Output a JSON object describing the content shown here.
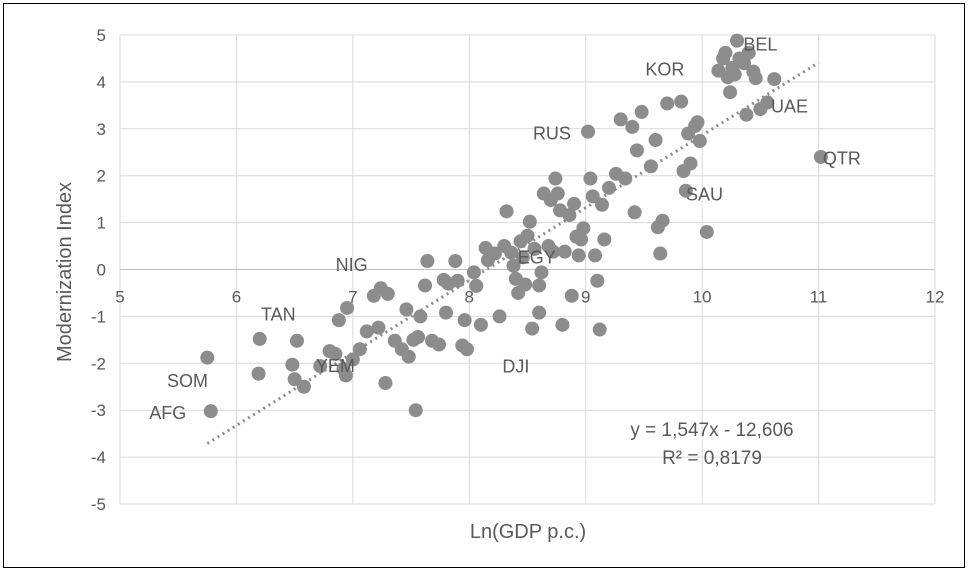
{
  "chart_data": {
    "type": "scatter",
    "xlabel": "Ln(GDP p.c.)",
    "ylabel": "Modernization Index",
    "xlim": [
      5,
      12
    ],
    "ylim": [
      -5,
      5
    ],
    "x_ticks": [
      "5",
      "6",
      "7",
      "8",
      "9",
      "10",
      "11",
      "12"
    ],
    "y_ticks": [
      "5",
      "4",
      "3",
      "2",
      "1",
      "0",
      "-1",
      "-2",
      "-3",
      "-4",
      "-5"
    ],
    "grid": "vertical and horizontal major gridlines",
    "marker_color": "#8c8c8c",
    "trendline_color": "#8c8c8c",
    "trendline": {
      "type": "linear",
      "slope": 1.547,
      "intercept": -12.606,
      "x_range": [
        5.75,
        11.0
      ]
    },
    "equation_text": "y = 1,547x - 12,606",
    "r2_text": "R² = 0,8179",
    "points": [
      [
        5.75,
        -1.88
      ],
      [
        5.78,
        -3.02
      ],
      [
        6.19,
        -2.22
      ],
      [
        6.2,
        -1.48
      ],
      [
        6.48,
        -2.03
      ],
      [
        6.5,
        -2.34
      ],
      [
        6.52,
        -1.52
      ],
      [
        6.58,
        -2.5
      ],
      [
        6.72,
        -2.06
      ],
      [
        6.8,
        -1.74
      ],
      [
        6.85,
        -1.8
      ],
      [
        6.88,
        -1.08
      ],
      [
        6.92,
        -2.12
      ],
      [
        6.94,
        -2.26
      ],
      [
        6.95,
        -0.82
      ],
      [
        7.0,
        -1.92
      ],
      [
        7.06,
        -1.7
      ],
      [
        7.12,
        -1.32
      ],
      [
        7.18,
        -0.56
      ],
      [
        7.22,
        -1.24
      ],
      [
        7.24,
        -0.4
      ],
      [
        7.28,
        -2.42
      ],
      [
        7.3,
        -0.52
      ],
      [
        7.36,
        -1.52
      ],
      [
        7.42,
        -1.7
      ],
      [
        7.46,
        -0.85
      ],
      [
        7.48,
        -1.86
      ],
      [
        7.52,
        -1.5
      ],
      [
        7.54,
        -3.0
      ],
      [
        7.56,
        -1.44
      ],
      [
        7.58,
        -1.0
      ],
      [
        7.62,
        -0.34
      ],
      [
        7.64,
        0.18
      ],
      [
        7.68,
        -1.52
      ],
      [
        7.74,
        -1.6
      ],
      [
        7.78,
        -0.22
      ],
      [
        7.8,
        -0.92
      ],
      [
        7.82,
        -0.3
      ],
      [
        7.88,
        0.18
      ],
      [
        7.9,
        -0.24
      ],
      [
        7.94,
        -1.62
      ],
      [
        7.96,
        -1.08
      ],
      [
        7.98,
        -1.7
      ],
      [
        8.04,
        -0.06
      ],
      [
        8.06,
        -0.35
      ],
      [
        8.1,
        -1.18
      ],
      [
        8.14,
        0.46
      ],
      [
        8.16,
        0.2
      ],
      [
        8.22,
        0.34
      ],
      [
        8.26,
        -1.0
      ],
      [
        8.3,
        0.5
      ],
      [
        8.32,
        1.24
      ],
      [
        8.36,
        0.36
      ],
      [
        8.38,
        0.08
      ],
      [
        8.4,
        -0.2
      ],
      [
        8.42,
        -0.5
      ],
      [
        8.44,
        0.6
      ],
      [
        8.46,
        0.26
      ],
      [
        8.48,
        -0.32
      ],
      [
        8.5,
        0.72
      ],
      [
        8.52,
        1.02
      ],
      [
        8.54,
        -1.26
      ],
      [
        8.56,
        0.44
      ],
      [
        8.6,
        -0.34
      ],
      [
        8.6,
        -0.92
      ],
      [
        8.62,
        -0.06
      ],
      [
        8.64,
        1.62
      ],
      [
        8.68,
        0.5
      ],
      [
        8.7,
        1.48
      ],
      [
        8.72,
        0.38
      ],
      [
        8.74,
        1.94
      ],
      [
        8.76,
        1.62
      ],
      [
        8.78,
        1.26
      ],
      [
        8.8,
        -1.18
      ],
      [
        8.82,
        0.38
      ],
      [
        8.86,
        1.16
      ],
      [
        8.88,
        -0.56
      ],
      [
        8.9,
        1.4
      ],
      [
        8.92,
        0.7
      ],
      [
        8.94,
        0.3
      ],
      [
        8.96,
        0.64
      ],
      [
        8.98,
        0.88
      ],
      [
        9.02,
        2.94
      ],
      [
        9.04,
        1.94
      ],
      [
        9.06,
        1.56
      ],
      [
        9.08,
        0.3
      ],
      [
        9.1,
        -0.24
      ],
      [
        9.12,
        -1.28
      ],
      [
        9.14,
        1.38
      ],
      [
        9.16,
        0.64
      ],
      [
        9.2,
        1.74
      ],
      [
        9.26,
        2.04
      ],
      [
        9.3,
        3.2
      ],
      [
        9.34,
        1.94
      ],
      [
        9.4,
        3.04
      ],
      [
        9.42,
        1.22
      ],
      [
        9.44,
        2.54
      ],
      [
        9.48,
        3.36
      ],
      [
        9.56,
        2.2
      ],
      [
        9.6,
        2.76
      ],
      [
        9.62,
        0.9
      ],
      [
        9.64,
        0.34
      ],
      [
        9.66,
        1.04
      ],
      [
        9.7,
        3.54
      ],
      [
        9.82,
        3.58
      ],
      [
        9.84,
        2.1
      ],
      [
        9.86,
        1.68
      ],
      [
        9.88,
        2.9
      ],
      [
        9.9,
        2.26
      ],
      [
        9.94,
        3.06
      ],
      [
        9.96,
        3.14
      ],
      [
        9.98,
        2.74
      ],
      [
        10.04,
        0.8
      ],
      [
        10.14,
        4.24
      ],
      [
        10.18,
        4.5
      ],
      [
        10.2,
        4.62
      ],
      [
        10.22,
        4.1
      ],
      [
        10.24,
        3.78
      ],
      [
        10.26,
        4.3
      ],
      [
        10.28,
        4.16
      ],
      [
        10.3,
        4.88
      ],
      [
        10.32,
        4.5
      ],
      [
        10.36,
        4.4
      ],
      [
        10.38,
        3.3
      ],
      [
        10.4,
        4.62
      ],
      [
        10.44,
        4.22
      ],
      [
        10.46,
        4.08
      ],
      [
        10.5,
        3.42
      ],
      [
        10.56,
        3.56
      ],
      [
        10.62,
        4.06
      ],
      [
        11.02,
        2.4
      ]
    ],
    "labels": [
      {
        "text": "BEL",
        "x": 10.5,
        "y": 4.8
      },
      {
        "text": "KOR",
        "x": 9.68,
        "y": 4.26
      },
      {
        "text": "UAE",
        "x": 10.75,
        "y": 3.48
      },
      {
        "text": "RUS",
        "x": 8.71,
        "y": 2.9
      },
      {
        "text": "QTR",
        "x": 11.2,
        "y": 2.37
      },
      {
        "text": "SAU",
        "x": 10.02,
        "y": 1.6
      },
      {
        "text": "NIG",
        "x": 6.99,
        "y": 0.1
      },
      {
        "text": "EGY",
        "x": 8.58,
        "y": 0.26
      },
      {
        "text": "TAN",
        "x": 6.36,
        "y": -0.96
      },
      {
        "text": "DJI",
        "x": 8.4,
        "y": -2.07
      },
      {
        "text": "YEM",
        "x": 6.85,
        "y": -2.06
      },
      {
        "text": "SOM",
        "x": 5.58,
        "y": -2.38
      },
      {
        "text": "AFG",
        "x": 5.41,
        "y": -3.06
      }
    ]
  }
}
